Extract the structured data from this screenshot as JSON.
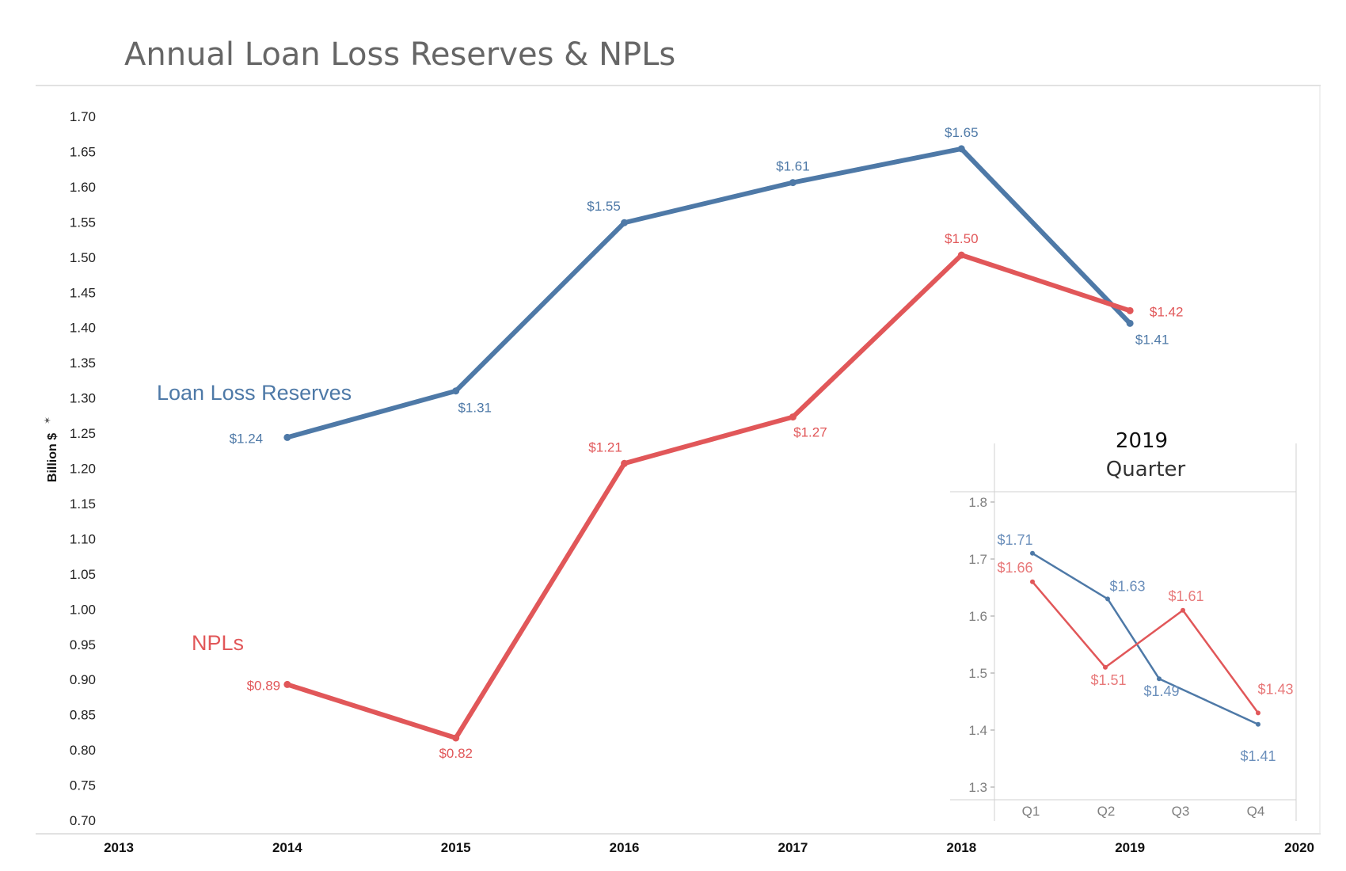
{
  "title": "Annual Loan Loss Reserves & NPLs",
  "chart_data": [
    {
      "type": "line",
      "title": "Annual Loan Loss Reserves & NPLs",
      "ylabel": "Billion $",
      "xlabel": "",
      "x_ticks": [
        "2013",
        "2014",
        "2015",
        "2016",
        "2017",
        "2018",
        "2019",
        "2020"
      ],
      "x": [
        2014,
        2015,
        2016,
        2017,
        2018,
        2019
      ],
      "xlim": [
        2013,
        2020
      ],
      "ylim": [
        0.7,
        1.7
      ],
      "y_ticks": [
        "1.70",
        "1.65",
        "1.60",
        "1.55",
        "1.50",
        "1.45",
        "1.40",
        "1.35",
        "1.30",
        "1.25",
        "1.20",
        "1.15",
        "1.10",
        "1.05",
        "1.00",
        "0.95",
        "0.90",
        "0.85",
        "0.80",
        "0.75",
        "0.70"
      ],
      "grid": false,
      "series": [
        {
          "name": "Loan Loss Reserves",
          "color": "#4e79a7",
          "values": [
            1.244,
            1.31,
            1.549,
            1.606,
            1.654,
            1.406
          ],
          "labels": [
            "$1.24",
            "$1.31",
            "$1.55",
            "$1.61",
            "$1.65",
            "$1.41"
          ]
        },
        {
          "name": "NPLs",
          "color": "#e15759",
          "values": [
            0.893,
            0.817,
            1.207,
            1.273,
            1.503,
            1.424
          ],
          "labels": [
            "$0.89",
            "$0.82",
            "$1.21",
            "$1.27",
            "$1.50",
            "$1.42"
          ]
        }
      ]
    },
    {
      "type": "line",
      "title": "2019",
      "subtitle": "Quarter",
      "categories": [
        "Q1",
        "Q2",
        "Q3",
        "Q4"
      ],
      "ylim": [
        1.3,
        1.8
      ],
      "y_ticks": [
        "1.8",
        "1.7",
        "1.6",
        "1.5",
        "1.4",
        "1.3"
      ],
      "series": [
        {
          "color": "#4e79a7",
          "values": [
            1.71,
            1.63,
            1.49,
            1.41
          ],
          "labels": [
            "$1.71",
            "$1.63",
            "$1.49",
            "$1.41"
          ]
        },
        {
          "color": "#e15759",
          "values": [
            1.66,
            1.51,
            1.61,
            1.43
          ],
          "labels": [
            "$1.66",
            "$1.51",
            "$1.61",
            "$1.43"
          ]
        }
      ]
    }
  ]
}
